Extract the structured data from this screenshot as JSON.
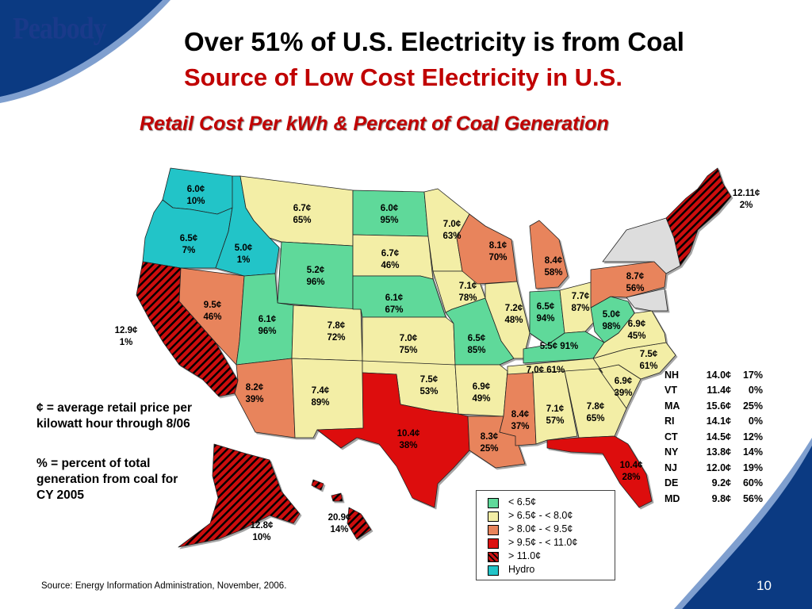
{
  "logo": "Peabody",
  "title": "Over 51% of U.S. Electricity is from Coal",
  "subtitle": "Source of Low Cost Electricity in U.S.",
  "map_title": "Retail Cost Per kWh & Percent of Coal Generation",
  "colors": {
    "lt_6_5": "#5fd99a",
    "6_5_to_8": "#f3eea6",
    "8_to_9_5": "#e8845c",
    "9_5_to_11": "#dd1111",
    "gt_11": "#cc1111",
    "hydro": "#22c4c8",
    "navy": "#0b3a82"
  },
  "states": {
    "WA": {
      "cost": "6.0¢",
      "pct": "10%",
      "cat": "hydro"
    },
    "OR": {
      "cost": "6.5¢",
      "pct": "7%",
      "cat": "hydro"
    },
    "ID": {
      "cost": "5.0¢",
      "pct": "1%",
      "cat": "hydro"
    },
    "CA": {
      "cost": "12.9¢",
      "pct": "1%",
      "cat": "gt_11"
    },
    "NV": {
      "cost": "9.5¢",
      "pct": "46%",
      "cat": "8_to_9_5"
    },
    "MT": {
      "cost": "6.7¢",
      "pct": "65%",
      "cat": "6_5_to_8"
    },
    "WY": {
      "cost": "5.2¢",
      "pct": "96%",
      "cat": "lt_6_5"
    },
    "UT": {
      "cost": "6.1¢",
      "pct": "96%",
      "cat": "lt_6_5"
    },
    "AZ": {
      "cost": "8.2¢",
      "pct": "39%",
      "cat": "8_to_9_5"
    },
    "CO": {
      "cost": "7.8¢",
      "pct": "72%",
      "cat": "6_5_to_8"
    },
    "NM": {
      "cost": "7.4¢",
      "pct": "89%",
      "cat": "6_5_to_8"
    },
    "ND": {
      "cost": "6.0¢",
      "pct": "95%",
      "cat": "lt_6_5"
    },
    "SD": {
      "cost": "6.7¢",
      "pct": "46%",
      "cat": "6_5_to_8"
    },
    "NE": {
      "cost": "6.1¢",
      "pct": "67%",
      "cat": "lt_6_5"
    },
    "KS": {
      "cost": "7.0¢",
      "pct": "75%",
      "cat": "6_5_to_8"
    },
    "OK": {
      "cost": "7.5¢",
      "pct": "53%",
      "cat": "6_5_to_8"
    },
    "TX": {
      "cost": "10.4¢",
      "pct": "38%",
      "cat": "9_5_to_11"
    },
    "MN": {
      "cost": "7.0¢",
      "pct": "63%",
      "cat": "6_5_to_8"
    },
    "IA": {
      "cost": "7.1¢",
      "pct": "78%",
      "cat": "6_5_to_8"
    },
    "MO": {
      "cost": "6.5¢",
      "pct": "85%",
      "cat": "lt_6_5"
    },
    "AR": {
      "cost": "6.9¢",
      "pct": "49%",
      "cat": "6_5_to_8"
    },
    "LA": {
      "cost": "8.3¢",
      "pct": "25%",
      "cat": "8_to_9_5"
    },
    "WI": {
      "cost": "8.1¢",
      "pct": "70%",
      "cat": "8_to_9_5"
    },
    "IL": {
      "cost": "7.2¢",
      "pct": "48%",
      "cat": "6_5_to_8"
    },
    "MI": {
      "cost": "8.4¢",
      "pct": "58%",
      "cat": "8_to_9_5"
    },
    "IN": {
      "cost": "6.5¢",
      "pct": "94%",
      "cat": "lt_6_5"
    },
    "OH": {
      "cost": "7.7¢",
      "pct": "87%",
      "cat": "6_5_to_8"
    },
    "KY": {
      "cost": "5.5¢",
      "pct": "91%",
      "cat": "lt_6_5"
    },
    "TN": {
      "cost": "7.0¢",
      "pct": "61%",
      "cat": "6_5_to_8"
    },
    "MS": {
      "cost": "8.4¢",
      "pct": "37%",
      "cat": "8_to_9_5"
    },
    "AL": {
      "cost": "7.1¢",
      "pct": "57%",
      "cat": "6_5_to_8"
    },
    "GA": {
      "cost": "7.8¢",
      "pct": "65%",
      "cat": "6_5_to_8"
    },
    "FL": {
      "cost": "10.4¢",
      "pct": "28%",
      "cat": "9_5_to_11"
    },
    "SC": {
      "cost": "6.9¢",
      "pct": "39%",
      "cat": "6_5_to_8"
    },
    "NC": {
      "cost": "7.5¢",
      "pct": "61%",
      "cat": "6_5_to_8"
    },
    "VA": {
      "cost": "6.9¢",
      "pct": "45%",
      "cat": "6_5_to_8"
    },
    "WV": {
      "cost": "5.0¢",
      "pct": "98%",
      "cat": "lt_6_5"
    },
    "PA": {
      "cost": "8.7¢",
      "pct": "56%",
      "cat": "8_to_9_5"
    },
    "ME": {
      "cost": "12.11¢",
      "pct": "2%",
      "cat": "gt_11"
    },
    "AK": {
      "cost": "12.8¢",
      "pct": "10%",
      "cat": "gt_11"
    },
    "HI": {
      "cost": "20.9¢",
      "pct": "14%",
      "cat": "gt_11"
    }
  },
  "notes": {
    "cents": "¢ = average retail price per kilowatt hour through 8/06",
    "percent": "% = percent of total generation from coal for CY 2005"
  },
  "northeast": [
    {
      "state": "NH",
      "cost": "14.0¢",
      "pct": "17%"
    },
    {
      "state": "VT",
      "cost": "11.4¢",
      "pct": "0%"
    },
    {
      "state": "MA",
      "cost": "15.6¢",
      "pct": "25%"
    },
    {
      "state": "RI",
      "cost": "14.1¢",
      "pct": "0%"
    },
    {
      "state": "CT",
      "cost": "14.5¢",
      "pct": "12%"
    },
    {
      "state": "NY",
      "cost": "13.8¢",
      "pct": "14%"
    },
    {
      "state": "NJ",
      "cost": "12.0¢",
      "pct": "19%"
    },
    {
      "state": "DE",
      "cost": "9.2¢",
      "pct": "60%"
    },
    {
      "state": "MD",
      "cost": "9.8¢",
      "pct": "56%"
    }
  ],
  "legend": [
    {
      "label": "<     6.5¢",
      "cat": "lt_6_5"
    },
    {
      "label": ">   6.5¢ -  <    8.0¢",
      "cat": "6_5_to_8"
    },
    {
      "label": ">    8.0¢ - <   9.5¢",
      "cat": "8_to_9_5"
    },
    {
      "label": ">    9.5¢ - <  11.0¢",
      "cat": "9_5_to_11"
    },
    {
      "label": ">  11.0¢",
      "cat": "gt_11"
    },
    {
      "label": "Hydro",
      "cat": "hydro"
    }
  ],
  "source": "Source: Energy Information Administration, November, 2006.",
  "page_number": "10"
}
